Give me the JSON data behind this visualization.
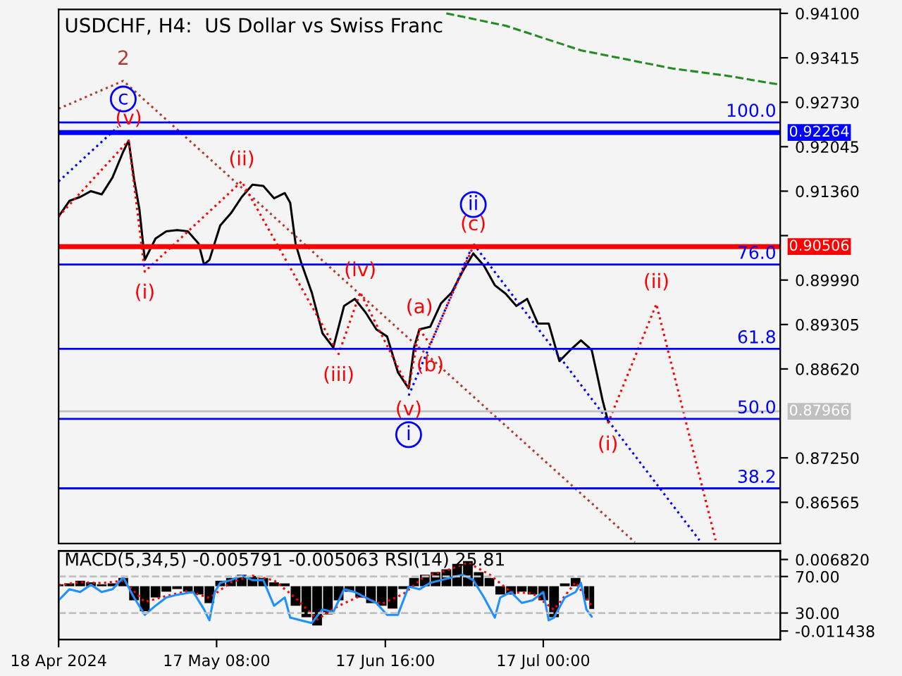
{
  "chart_data": [
    {
      "type": "line",
      "title": "USDCHF, H4:  US Dollar vs Swiss Franc",
      "xlim": [
        "2024-04-18",
        "2024-08-30"
      ],
      "ylim": [
        0.8593,
        0.9416
      ],
      "tick_labels": "y",
      "yticks": [
        {
          "value": 0.941,
          "label": "0.94100"
        },
        {
          "value": 0.93415,
          "label": "0.93415"
        },
        {
          "value": 0.9273,
          "label": "0.92730"
        },
        {
          "value": 0.92045,
          "label": "0.92045"
        },
        {
          "value": 0.9136,
          "label": "0.91360"
        },
        {
          "value": 0.90675,
          "label": null
        },
        {
          "value": 0.8999,
          "label": "0.89990"
        },
        {
          "value": 0.89305,
          "label": "0.89305"
        },
        {
          "value": 0.8862,
          "label": "0.88620"
        },
        {
          "value": 0.8725,
          "label": "0.87250"
        },
        {
          "value": 0.86565,
          "label": "0.86565"
        }
      ],
      "series": [
        {
          "color": "#000000",
          "line_style": "solid",
          "x": [
            "2024-04-18",
            "2024-04-20",
            "2024-04-22",
            "2024-04-24",
            "2024-04-26",
            "2024-04-28",
            "2024-04-30",
            "2024-05-01",
            "2024-05-02",
            "2024-05-03",
            "2024-05-04",
            "2024-05-06",
            "2024-05-08",
            "2024-05-10",
            "2024-05-12",
            "2024-05-14",
            "2024-05-15",
            "2024-05-16",
            "2024-05-18",
            "2024-05-20",
            "2024-05-22",
            "2024-05-24",
            "2024-05-26",
            "2024-05-28",
            "2024-05-30",
            "2024-05-31",
            "2024-06-01",
            "2024-06-02",
            "2024-06-04",
            "2024-06-06",
            "2024-06-08",
            "2024-06-10",
            "2024-06-12",
            "2024-06-14",
            "2024-06-16",
            "2024-06-18",
            "2024-06-20",
            "2024-06-22",
            "2024-06-23",
            "2024-06-24",
            "2024-06-26",
            "2024-06-28",
            "2024-06-30",
            "2024-07-02",
            "2024-07-04",
            "2024-07-06",
            "2024-07-08",
            "2024-07-10",
            "2024-07-12",
            "2024-07-14",
            "2024-07-16",
            "2024-07-18",
            "2024-07-20",
            "2024-07-22",
            "2024-07-24",
            "2024-07-26",
            "2024-07-27",
            "2024-07-28",
            "2024-07-29"
          ],
          "values": [
            0.9097,
            0.9121,
            0.9127,
            0.9136,
            0.9131,
            0.9157,
            0.9197,
            0.9214,
            0.9155,
            0.9108,
            0.903,
            0.9063,
            0.9074,
            0.9076,
            0.9074,
            0.9055,
            0.9023,
            0.903,
            0.9083,
            0.9102,
            0.9127,
            0.9146,
            0.9144,
            0.9125,
            0.9133,
            0.9118,
            0.9055,
            0.9027,
            0.898,
            0.8917,
            0.8895,
            0.8959,
            0.897,
            0.8949,
            0.8923,
            0.8912,
            0.8857,
            0.8832,
            0.8895,
            0.8923,
            0.8927,
            0.8963,
            0.898,
            0.9012,
            0.904,
            0.9021,
            0.8991,
            0.8978,
            0.8959,
            0.897,
            0.8932,
            0.8932,
            0.8874,
            0.8891,
            0.8906,
            0.8891,
            0.8853,
            0.8814,
            0.8782
          ]
        },
        {
          "color": "#228b22",
          "line_style": "dashed",
          "x": [
            "2024-06-29",
            "2024-07-10",
            "2024-07-24",
            "2024-08-10",
            "2024-08-20",
            "2024-08-30"
          ],
          "values": [
            0.941,
            0.9391,
            0.9353,
            0.9325,
            0.9314,
            0.93
          ]
        },
        {
          "color": "#b03a2e",
          "line_style": "dotted",
          "x": [
            "2024-04-18",
            "2024-04-30",
            "2024-08-03"
          ],
          "values": [
            0.9263,
            0.9306,
            0.8595
          ]
        },
        {
          "color": "#0000ff",
          "line_style": "dotted",
          "x": [
            "2024-04-18",
            "2024-04-29"
          ],
          "values": [
            0.9151,
            0.9235
          ]
        },
        {
          "color": "#ff0000",
          "line_style": "dotted",
          "x": [
            "2024-04-18",
            "2024-05-01",
            "2024-05-04",
            "2024-05-22",
            "2024-06-09",
            "2024-06-13",
            "2024-06-22",
            "2024-06-24",
            "2024-06-26",
            "2024-07-04"
          ],
          "values": [
            0.9097,
            0.9214,
            0.9012,
            0.9151,
            0.8885,
            0.898,
            0.8832,
            0.8923,
            0.89,
            0.9051
          ],
          "value_labels": [
            null,
            "(v)",
            "(i)",
            "(ii)",
            "(iii)",
            "(iv)",
            "(v)",
            "(a)",
            "(b)",
            "(c)"
          ]
        },
        {
          "color": "#0000ff",
          "line_style": "dotted",
          "x": [
            "2024-06-22",
            "2024-07-04",
            "2024-08-15"
          ],
          "values": [
            0.8821,
            0.9055,
            0.8598
          ],
          "value_labels": [
            "i",
            "ii",
            null
          ]
        },
        {
          "color": "#ff0000",
          "line_style": "dotted",
          "x": [
            "2024-07-29",
            "2024-08-07",
            "2024-08-18"
          ],
          "values": [
            0.8778,
            0.8962,
            0.8598
          ],
          "value_labels": [
            "(i)",
            "(ii)",
            null
          ]
        }
      ],
      "ref_lines": [
        {
          "axis": "y",
          "value": 0.9242,
          "color": "#0000ff"
        },
        {
          "axis": "y",
          "value": 0.92264,
          "label": "0.92264",
          "color": "#0000ff"
        },
        {
          "axis": "y",
          "value": 0.90506,
          "label": "0.90506",
          "color": "#ff0000"
        },
        {
          "axis": "y",
          "value": 0.9023,
          "color": "#0000ff"
        },
        {
          "axis": "y",
          "value": 0.8893,
          "color": "#0000ff"
        },
        {
          "axis": "y",
          "value": 0.87966,
          "label": "0.87966",
          "color": "#c0c0c0"
        },
        {
          "axis": "y",
          "value": 0.8785,
          "color": "#0000ff"
        },
        {
          "axis": "y",
          "value": 0.8678,
          "color": "#0000ff"
        }
      ],
      "annotations": [
        {
          "text": "2",
          "x": "2024-04-30",
          "y": 0.9306
        },
        {
          "text": "c",
          "x": "2024-04-30",
          "y": 0.9278
        },
        {
          "text": "100.0",
          "x": "2024-08-30",
          "y": 0.9242
        },
        {
          "text": "76.0",
          "x": "2024-08-30",
          "y": 0.9023
        },
        {
          "text": "61.8",
          "x": "2024-08-30",
          "y": 0.8893
        },
        {
          "text": "50.0",
          "x": "2024-08-30",
          "y": 0.8785
        },
        {
          "text": "38.2",
          "x": "2024-08-30",
          "y": 0.8678
        }
      ]
    },
    {
      "type": "bar",
      "title": "MACD(5,34,5) -0.005791 -0.005063 RSI(14) 25.81",
      "xlim": [
        "2024-04-18",
        "2024-08-30"
      ],
      "xticks": [
        {
          "value": "2024-04-18",
          "label": "18 Apr 2024"
        },
        {
          "value": "2024-05-17T08:00",
          "label": "17 May 08:00"
        },
        {
          "value": "2024-06-17T16:00",
          "label": "17 Jun 16:00"
        },
        {
          "value": "2024-07-17T00:00",
          "label": "17 Jul 00:00"
        }
      ],
      "ylim": [
        -0.0136,
        0.009
      ],
      "yticks": [
        {
          "value": 0.00682,
          "label": "0.006820"
        },
        {
          "value": -0.011438,
          "label": "-0.011438"
        }
      ],
      "y2lim": [
        1,
        98
      ],
      "y2ticks": [
        {
          "value": 70,
          "label": "70.00"
        },
        {
          "value": 30,
          "label": "30.00"
        }
      ],
      "series": [
        {
          "type": "bar",
          "color": "#000000",
          "x": [
            "2024-04-18",
            "2024-04-20",
            "2024-04-22",
            "2024-04-24",
            "2024-04-26",
            "2024-04-28",
            "2024-04-30",
            "2024-05-02",
            "2024-05-04",
            "2024-05-06",
            "2024-05-08",
            "2024-05-10",
            "2024-05-12",
            "2024-05-14",
            "2024-05-16",
            "2024-05-18",
            "2024-05-20",
            "2024-05-22",
            "2024-05-24",
            "2024-05-26",
            "2024-05-28",
            "2024-05-30",
            "2024-06-01",
            "2024-06-03",
            "2024-06-05",
            "2024-06-07",
            "2024-06-09",
            "2024-06-11",
            "2024-06-13",
            "2024-06-15",
            "2024-06-17",
            "2024-06-19",
            "2024-06-21",
            "2024-06-23",
            "2024-06-25",
            "2024-06-27",
            "2024-06-29",
            "2024-07-01",
            "2024-07-03",
            "2024-07-05",
            "2024-07-07",
            "2024-07-09",
            "2024-07-11",
            "2024-07-13",
            "2024-07-15",
            "2024-07-17",
            "2024-07-19",
            "2024-07-21",
            "2024-07-23",
            "2024-07-25",
            "2024-07-26"
          ],
          "values": [
            0.0005,
            0.0007,
            0.0014,
            0.001,
            0.0005,
            0.0007,
            0.0021,
            -0.0036,
            -0.0064,
            -0.0029,
            -0.0014,
            -0.0007,
            -0.0014,
            -0.0021,
            -0.0043,
            0.0014,
            0.0021,
            0.0029,
            0.0026,
            0.0021,
            0.001,
            0.0007,
            -0.005,
            -0.0079,
            -0.01,
            -0.0072,
            -0.0036,
            -0.0014,
            -0.0029,
            -0.0043,
            -0.005,
            -0.0057,
            -0.0007,
            0.0021,
            0.0029,
            0.0036,
            0.0043,
            0.0057,
            0.0064,
            0.0036,
            0.0021,
            -0.0021,
            -0.0021,
            -0.0014,
            -0.0021,
            -0.0036,
            -0.0079,
            0.0007,
            0.0021,
            -0.0036,
            -0.0058
          ]
        },
        {
          "type": "line",
          "color": "#ff0000",
          "line_style": "dotted",
          "x": [
            "2024-04-18",
            "2024-04-22",
            "2024-04-26",
            "2024-04-30",
            "2024-05-04",
            "2024-05-08",
            "2024-05-12",
            "2024-05-16",
            "2024-05-20",
            "2024-05-24",
            "2024-05-28",
            "2024-06-01",
            "2024-06-05",
            "2024-06-09",
            "2024-06-13",
            "2024-06-17",
            "2024-06-21",
            "2024-06-25",
            "2024-06-29",
            "2024-07-03",
            "2024-07-07",
            "2024-07-11",
            "2024-07-15",
            "2024-07-19",
            "2024-07-23",
            "2024-07-26"
          ],
          "values": [
            0.0003,
            0.001,
            0.0008,
            0.0014,
            -0.004,
            -0.0025,
            -0.0012,
            -0.003,
            0.001,
            0.0027,
            0.0015,
            -0.003,
            -0.0085,
            -0.005,
            -0.0025,
            -0.0045,
            -0.002,
            0.0025,
            0.004,
            0.006,
            0.003,
            -0.0015,
            -0.0018,
            -0.006,
            0.001,
            -0.0051
          ]
        },
        {
          "type": "line",
          "axis": "y2",
          "color": "#1e90ff",
          "line_style": "solid",
          "x": [
            "2024-04-18",
            "2024-04-20",
            "2024-04-22",
            "2024-04-24",
            "2024-04-26",
            "2024-04-28",
            "2024-04-30",
            "2024-05-02",
            "2024-05-04",
            "2024-05-06",
            "2024-05-08",
            "2024-05-10",
            "2024-05-13",
            "2024-05-15",
            "2024-05-16",
            "2024-05-17",
            "2024-05-18",
            "2024-05-20",
            "2024-05-22",
            "2024-05-24",
            "2024-05-26",
            "2024-05-28",
            "2024-05-30",
            "2024-05-31",
            "2024-06-02",
            "2024-06-04",
            "2024-06-06",
            "2024-06-08",
            "2024-06-10",
            "2024-06-12",
            "2024-06-14",
            "2024-06-16",
            "2024-06-18",
            "2024-06-20",
            "2024-06-22",
            "2024-06-24",
            "2024-06-26",
            "2024-06-28",
            "2024-06-30",
            "2024-07-02",
            "2024-07-04",
            "2024-07-06",
            "2024-07-08",
            "2024-07-09",
            "2024-07-11",
            "2024-07-13",
            "2024-07-15",
            "2024-07-17",
            "2024-07-18",
            "2024-07-19",
            "2024-07-21",
            "2024-07-23",
            "2024-07-24",
            "2024-07-25",
            "2024-07-26"
          ],
          "values": [
            44,
            56,
            53,
            61,
            53,
            56,
            69,
            47,
            28,
            38,
            47,
            50,
            53,
            34,
            22,
            53,
            63,
            66,
            71,
            66,
            66,
            38,
            47,
            25,
            22,
            19,
            34,
            31,
            56,
            53,
            47,
            41,
            28,
            28,
            59,
            56,
            63,
            66,
            69,
            72,
            66,
            47,
            25,
            47,
            53,
            41,
            44,
            53,
            22,
            25,
            47,
            53,
            63,
            34,
            26
          ]
        }
      ],
      "ref_lines": [
        {
          "axis": "y2",
          "value": 70,
          "color": "#c0c0c0",
          "line_style": "dashed"
        },
        {
          "axis": "y2",
          "value": 30,
          "color": "#c0c0c0",
          "line_style": "dashed"
        }
      ]
    }
  ]
}
